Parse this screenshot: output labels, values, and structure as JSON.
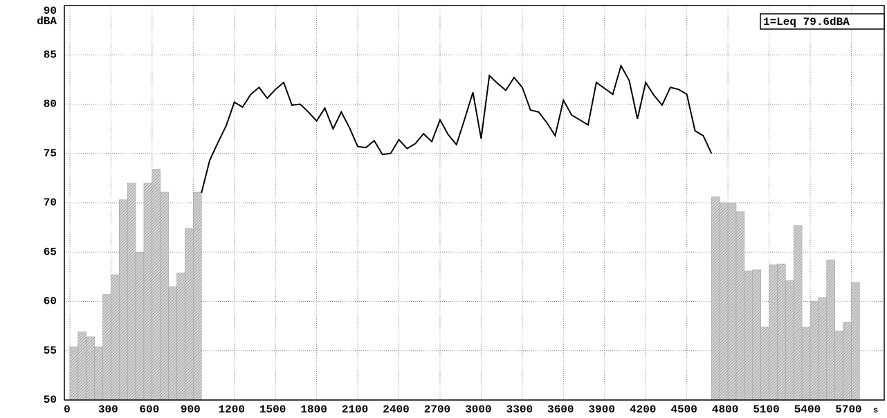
{
  "chart_data": {
    "type": "bar+line",
    "y_label": "dBA",
    "x_label": "s",
    "annotation": "1=Leq 79.6dBA",
    "xlim": [
      -40,
      5940
    ],
    "ylim": [
      50,
      90
    ],
    "xticks": [
      0,
      300,
      600,
      900,
      1200,
      1500,
      1800,
      2100,
      2400,
      2700,
      3000,
      3300,
      3600,
      3900,
      4200,
      4500,
      4800,
      5100,
      5400,
      5700
    ],
    "yticks": [
      50,
      55,
      60,
      65,
      70,
      75,
      80,
      85,
      90
    ],
    "grid": true,
    "series": [
      {
        "type": "bar",
        "color": "#9a9a9a",
        "x": [
          0,
          60,
          120,
          180,
          240,
          300,
          360,
          420,
          480,
          540,
          600,
          660,
          720,
          780,
          840,
          900,
          4680,
          4740,
          4800,
          4860,
          4920,
          4980,
          5040,
          5100,
          5160,
          5220,
          5280,
          5340,
          5400,
          5460,
          5520,
          5580,
          5640,
          5700
        ],
        "values": [
          55.4,
          56.9,
          56.4,
          55.4,
          60.7,
          62.7,
          70.3,
          72,
          65,
          72,
          73.4,
          71.1,
          61.5,
          62.9,
          67.4,
          71.1,
          70.6,
          70,
          70,
          69.1,
          63.1,
          63.2,
          57.4,
          63.7,
          63.8,
          62.1,
          67.7,
          57.4,
          60,
          60.4,
          64.2,
          57,
          57.9,
          61.9
        ]
      },
      {
        "type": "line",
        "color": "#000000",
        "x": [
          960,
          1020,
          1080,
          1140,
          1200,
          1260,
          1320,
          1380,
          1440,
          1500,
          1560,
          1620,
          1680,
          1740,
          1800,
          1860,
          1920,
          1980,
          2040,
          2100,
          2160,
          2220,
          2280,
          2340,
          2400,
          2460,
          2520,
          2580,
          2640,
          2700,
          2760,
          2820,
          2880,
          2940,
          3000,
          3060,
          3120,
          3180,
          3240,
          3300,
          3360,
          3420,
          3480,
          3540,
          3600,
          3660,
          3720,
          3780,
          3840,
          3900,
          3960,
          4020,
          4080,
          4140,
          4200,
          4260,
          4320,
          4380,
          4440,
          4500,
          4560,
          4620,
          4680
        ],
        "values": [
          71,
          74.3,
          76.1,
          77.8,
          80.2,
          79.7,
          81,
          81.7,
          80.6,
          81.5,
          82.2,
          79.9,
          80,
          79.2,
          78.3,
          79.6,
          77.5,
          79.2,
          77.6,
          75.7,
          75.6,
          76.3,
          74.9,
          75,
          76.4,
          75.5,
          76,
          77,
          76.2,
          78.4,
          76.9,
          75.9,
          78.5,
          81.2,
          76.5,
          82.9,
          82.1,
          81.4,
          82.7,
          81.7,
          79.4,
          79.2,
          78.1,
          76.8,
          80.4,
          78.9,
          78.4,
          77.9,
          82.2,
          81.6,
          81,
          83.9,
          82.4,
          78.5,
          82.2,
          80.9,
          79.9,
          81.7,
          81.5,
          81,
          77.3,
          76.8,
          75
        ]
      }
    ]
  }
}
